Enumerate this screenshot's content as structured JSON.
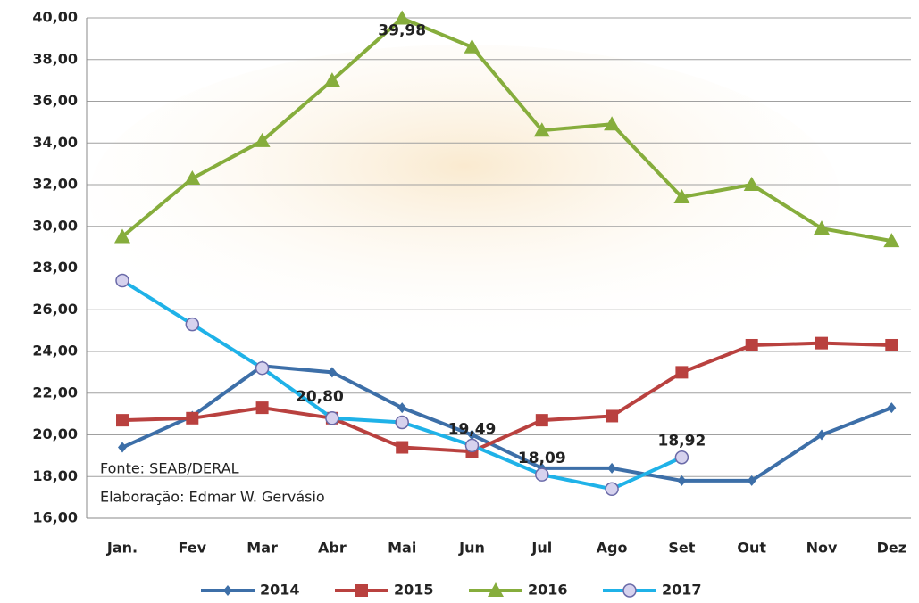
{
  "chart_data": {
    "type": "line",
    "categories": [
      "Jan.",
      "Fev",
      "Mar",
      "Abr",
      "Mai",
      "Jun",
      "Jul",
      "Ago",
      "Set",
      "Out",
      "Nov",
      "Dez"
    ],
    "series": [
      {
        "name": "2014",
        "color": "#3d6fa8",
        "marker": "diamond",
        "values": [
          19.4,
          20.9,
          23.3,
          23.0,
          21.3,
          20.0,
          18.4,
          18.4,
          17.8,
          17.8,
          20.0,
          21.3
        ]
      },
      {
        "name": "2015",
        "color": "#b9413f",
        "marker": "square",
        "values": [
          20.7,
          20.8,
          21.3,
          20.8,
          19.4,
          19.2,
          20.7,
          20.9,
          23.0,
          24.3,
          24.4,
          24.3
        ]
      },
      {
        "name": "2016",
        "color": "#86ad3c",
        "marker": "triangle",
        "values": [
          29.5,
          32.3,
          34.1,
          37.0,
          39.98,
          38.6,
          34.6,
          34.9,
          31.4,
          32.0,
          29.9,
          29.3
        ],
        "value_labels": [
          null,
          null,
          null,
          null,
          "39,98",
          null,
          null,
          null,
          null,
          null,
          null,
          null
        ]
      },
      {
        "name": "2017",
        "color": "#1fb2e8",
        "marker": "circle",
        "values": [
          27.4,
          25.3,
          23.2,
          20.8,
          20.6,
          19.49,
          18.09,
          17.4,
          18.92,
          null,
          null,
          null
        ],
        "value_labels": [
          null,
          null,
          null,
          "20,80",
          null,
          "19,49",
          "18,09",
          null,
          "18,92",
          null,
          null,
          null
        ]
      }
    ],
    "ylim": [
      16,
      40
    ],
    "yticks": [
      {
        "value": 16,
        "label": "16,00"
      },
      {
        "value": 18,
        "label": "18,00"
      },
      {
        "value": 20,
        "label": "20,00"
      },
      {
        "value": 22,
        "label": "22,00"
      },
      {
        "value": 24,
        "label": "24,00"
      },
      {
        "value": 26,
        "label": "26,00"
      },
      {
        "value": 28,
        "label": "28,00"
      },
      {
        "value": 30,
        "label": "30,00"
      },
      {
        "value": 32,
        "label": "32,00"
      },
      {
        "value": 34,
        "label": "34,00"
      },
      {
        "value": 36,
        "label": "36,00"
      },
      {
        "value": 38,
        "label": "38,00"
      },
      {
        "value": 40,
        "label": "40,00"
      }
    ],
    "grid": true,
    "legend": "bottom",
    "annotations": [
      "Fonte: SEAB/DERAL",
      "Elaboração:  Edmar W. Gervásio"
    ]
  }
}
